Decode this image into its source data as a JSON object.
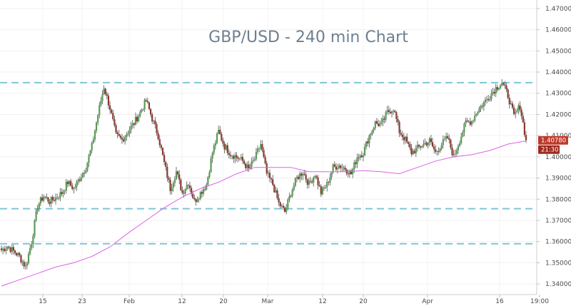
{
  "chart_data": {
    "type": "candlestick",
    "title": "GBP/USD - 240 min Chart",
    "y_range": [
      1.335,
      1.474
    ],
    "y_ticks": [
      "1.47000",
      "1.46000",
      "1.45000",
      "1.44000",
      "1.43000",
      "1.42000",
      "1.41000",
      "1.40000",
      "1.39000",
      "1.38000",
      "1.37000",
      "1.36000",
      "1.35000",
      "1.34000"
    ],
    "x_ticks": [
      "15",
      "23",
      "Feb",
      "12",
      "20",
      "Mar",
      "12",
      "20",
      "Apr",
      "16",
      "19:00"
    ],
    "horizontal_levels": [
      1.435,
      1.3755,
      1.359
    ],
    "last_price_label": "1.40780",
    "last_price": 1.4078,
    "countdown_label": "21:30",
    "colors": {
      "up": "#5a9b58",
      "down": "#8a3a2e",
      "wick": "#3a3a3a",
      "moving_average": "#e060e8",
      "levels": "#7dc6d6",
      "price_badge": "#c0392b",
      "countdown_badge": "#9e2a1e"
    },
    "price_path": [
      1.356,
      1.3578,
      1.3555,
      1.353,
      1.348,
      1.36,
      1.377,
      1.3815,
      1.379,
      1.3805,
      1.383,
      1.388,
      1.385,
      1.39,
      1.395,
      1.405,
      1.42,
      1.433,
      1.423,
      1.41,
      1.408,
      1.412,
      1.416,
      1.421,
      1.4265,
      1.418,
      1.41,
      1.397,
      1.385,
      1.393,
      1.383,
      1.388,
      1.379,
      1.383,
      1.387,
      1.402,
      1.412,
      1.405,
      1.4015,
      1.4,
      1.398,
      1.394,
      1.399,
      1.406,
      1.392,
      1.387,
      1.378,
      1.374,
      1.383,
      1.39,
      1.393,
      1.387,
      1.392,
      1.383,
      1.387,
      1.395,
      1.396,
      1.3945,
      1.392,
      1.4,
      1.402,
      1.41,
      1.416,
      1.415,
      1.421,
      1.423,
      1.412,
      1.408,
      1.402,
      1.404,
      1.406,
      1.4075,
      1.402,
      1.406,
      1.409,
      1.4,
      1.408,
      1.416,
      1.417,
      1.422,
      1.4255,
      1.429,
      1.4325,
      1.435,
      1.429,
      1.419,
      1.424,
      1.4078
    ],
    "moving_average_path": [
      1.339,
      1.342,
      1.345,
      1.348,
      1.35,
      1.353,
      1.3575,
      1.364,
      1.37,
      1.376,
      1.381,
      1.385,
      1.388,
      1.392,
      1.395,
      1.395,
      1.395,
      1.393,
      1.393,
      1.393,
      1.3935,
      1.393,
      1.392,
      1.395,
      1.398,
      1.4,
      1.401,
      1.403,
      1.406,
      1.4075
    ]
  }
}
